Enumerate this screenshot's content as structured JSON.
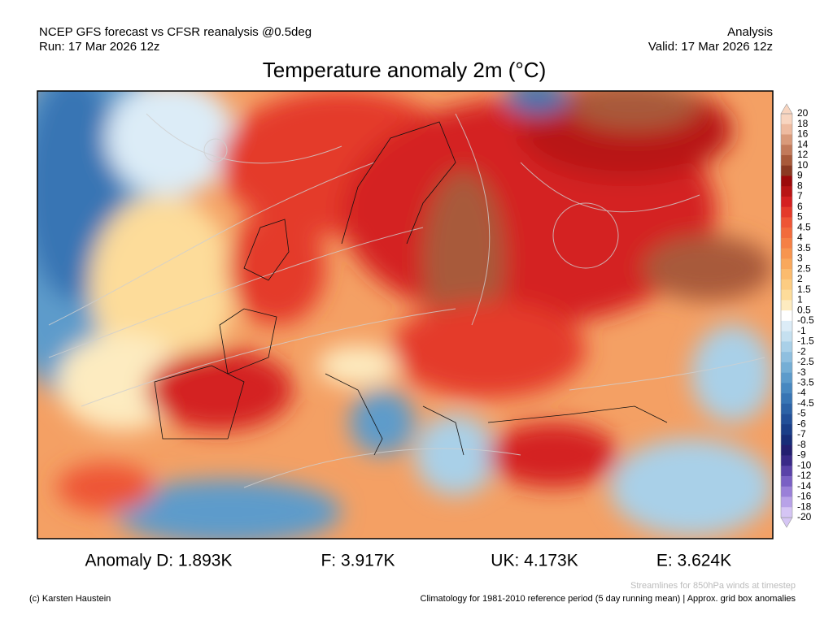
{
  "header": {
    "left": [
      "NCEP GFS forecast vs CFSR reanalysis @0.5deg",
      "Run: 17 Mar 2026 12z"
    ],
    "right": [
      "Analysis",
      "Valid: 17 Mar 2026 12z"
    ],
    "title": "Temperature anomaly 2m (°C)"
  },
  "colorbar": {
    "levels": [
      20,
      18,
      16,
      14,
      12,
      10,
      9,
      8,
      7,
      6,
      5,
      4.5,
      4,
      3.5,
      3,
      2.5,
      2,
      1.5,
      1,
      0.5,
      -0.5,
      -1,
      -1.5,
      -2,
      -2.5,
      -3,
      -3.5,
      -4,
      -4.5,
      -5,
      -6,
      -7,
      -8,
      -9,
      -10,
      -12,
      -14,
      -16,
      -18,
      -20
    ],
    "colors": [
      "#f8d5c0",
      "#eebba0",
      "#d99a7a",
      "#c27a5a",
      "#a85a3a",
      "#8b3a22",
      "#9c0a0a",
      "#b81414",
      "#d42020",
      "#e43a2a",
      "#ee5535",
      "#f26b3c",
      "#f58045",
      "#f7954f",
      "#f9a85c",
      "#fbbb6e",
      "#fccc82",
      "#fddc9a",
      "#fdebc0",
      "#ffffff",
      "#dcecf7",
      "#c5e0f0",
      "#a9d0e8",
      "#8fbfdf",
      "#75aed5",
      "#5d9bcb",
      "#4888c0",
      "#3875b4",
      "#2c62a6",
      "#224f98",
      "#1a3e88",
      "#172d78",
      "#231f70",
      "#3a2a88",
      "#5a42a8",
      "#7a60c4",
      "#9a80d8",
      "#b8a2e8",
      "#d5c5f4"
    ]
  },
  "stats": [
    "Anomaly D: 1.893K",
    "F: 3.917K",
    "UK: 4.173K",
    "E: 3.624K"
  ],
  "footer": {
    "credit": "(c) Karsten Haustein",
    "streamlines": "Streamlines for 850hPa winds at timestep",
    "climatology": "Climatology for 1981-2010 reference period (5 day running mean) | Approx. grid box anomalies"
  }
}
